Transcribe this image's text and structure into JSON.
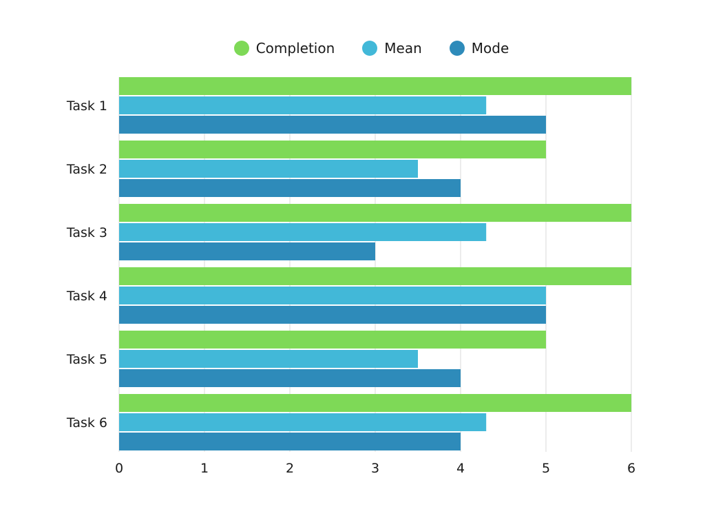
{
  "chart_data": {
    "type": "bar",
    "orientation": "horizontal",
    "categories": [
      "Task 1",
      "Task 2",
      "Task 3",
      "Task 4",
      "Task 5",
      "Task 6"
    ],
    "series": [
      {
        "name": "Completion",
        "color": "#7ED957",
        "values": [
          6,
          5,
          6,
          6,
          5,
          6
        ]
      },
      {
        "name": "Mean",
        "color": "#42B8D8",
        "values": [
          4.3,
          3.5,
          4.3,
          5,
          3.5,
          4.3
        ]
      },
      {
        "name": "Mode",
        "color": "#2E8BBA",
        "values": [
          5,
          4,
          3,
          5,
          4,
          4
        ]
      }
    ],
    "x_ticks": [
      "0",
      "1",
      "2",
      "3",
      "4",
      "5",
      "6"
    ],
    "xlim": [
      0,
      6
    ],
    "grid": true,
    "legend_position": "top"
  }
}
